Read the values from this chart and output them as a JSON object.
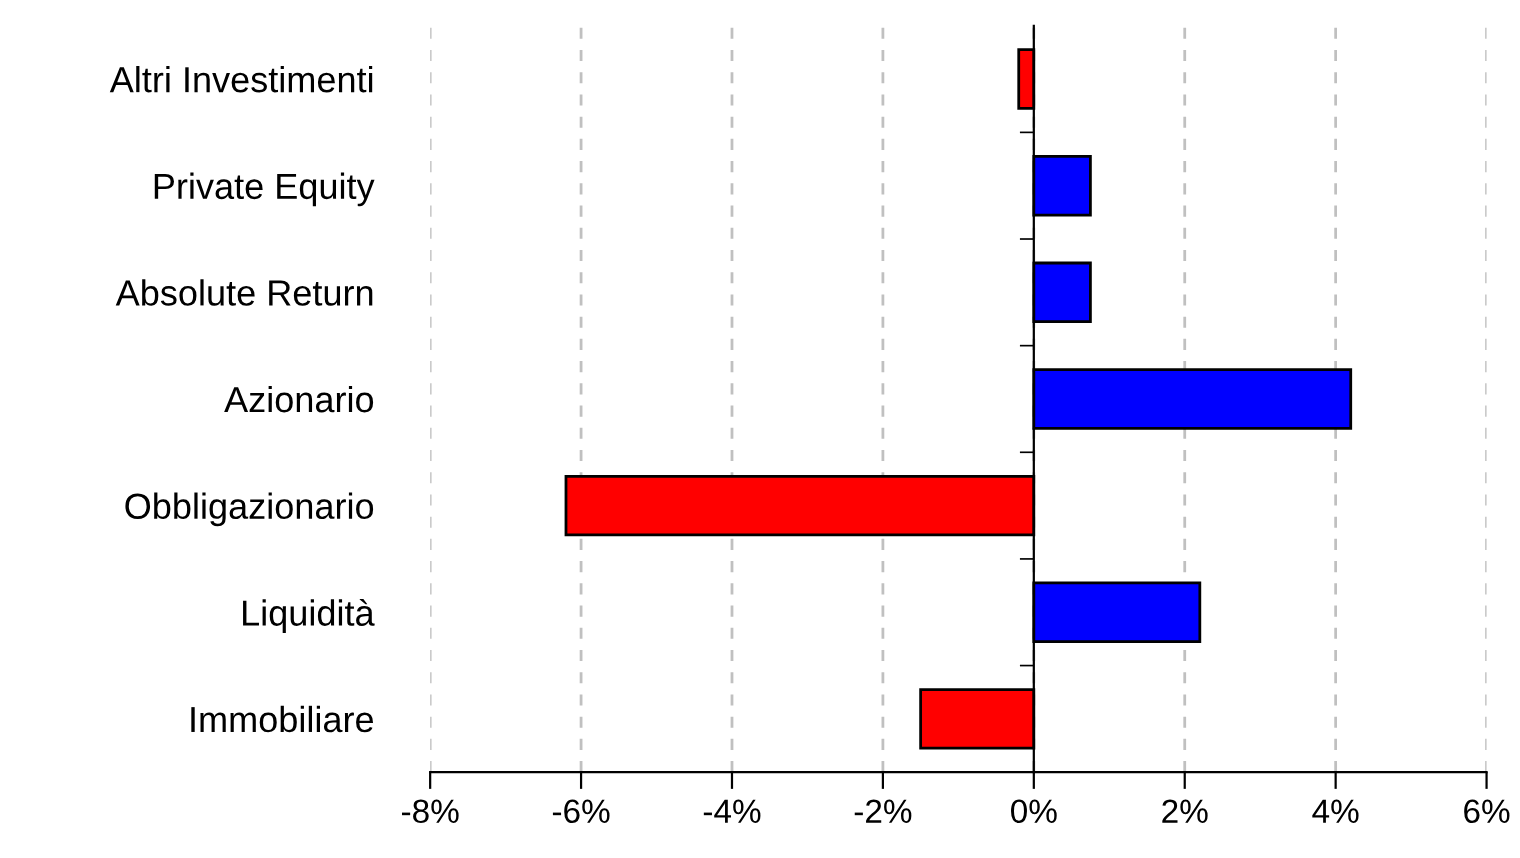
{
  "chart_data": {
    "type": "bar",
    "orientation": "horizontal",
    "categories": [
      "Altri Investimenti",
      "Private Equity",
      "Absolute Return",
      "Azionario",
      "Obbligazionario",
      "Liquidità",
      "Immobiliare"
    ],
    "values": [
      -0.2,
      0.75,
      0.75,
      4.2,
      -6.2,
      2.2,
      -1.5
    ],
    "colors": [
      "#ff0000",
      "#0000ff",
      "#0000ff",
      "#0000ff",
      "#ff0000",
      "#0000ff",
      "#ff0000"
    ],
    "xlim": [
      -8,
      6
    ],
    "xticks": [
      {
        "value": -8,
        "label": "-8%"
      },
      {
        "value": -6,
        "label": "-6%"
      },
      {
        "value": -4,
        "label": "-4%"
      },
      {
        "value": -2,
        "label": "-2%"
      },
      {
        "value": 0,
        "label": "0%"
      },
      {
        "value": 2,
        "label": "2%"
      },
      {
        "value": 4,
        "label": "4%"
      },
      {
        "value": 6,
        "label": "6%"
      }
    ],
    "grid": "x",
    "line_style": "dashed"
  }
}
